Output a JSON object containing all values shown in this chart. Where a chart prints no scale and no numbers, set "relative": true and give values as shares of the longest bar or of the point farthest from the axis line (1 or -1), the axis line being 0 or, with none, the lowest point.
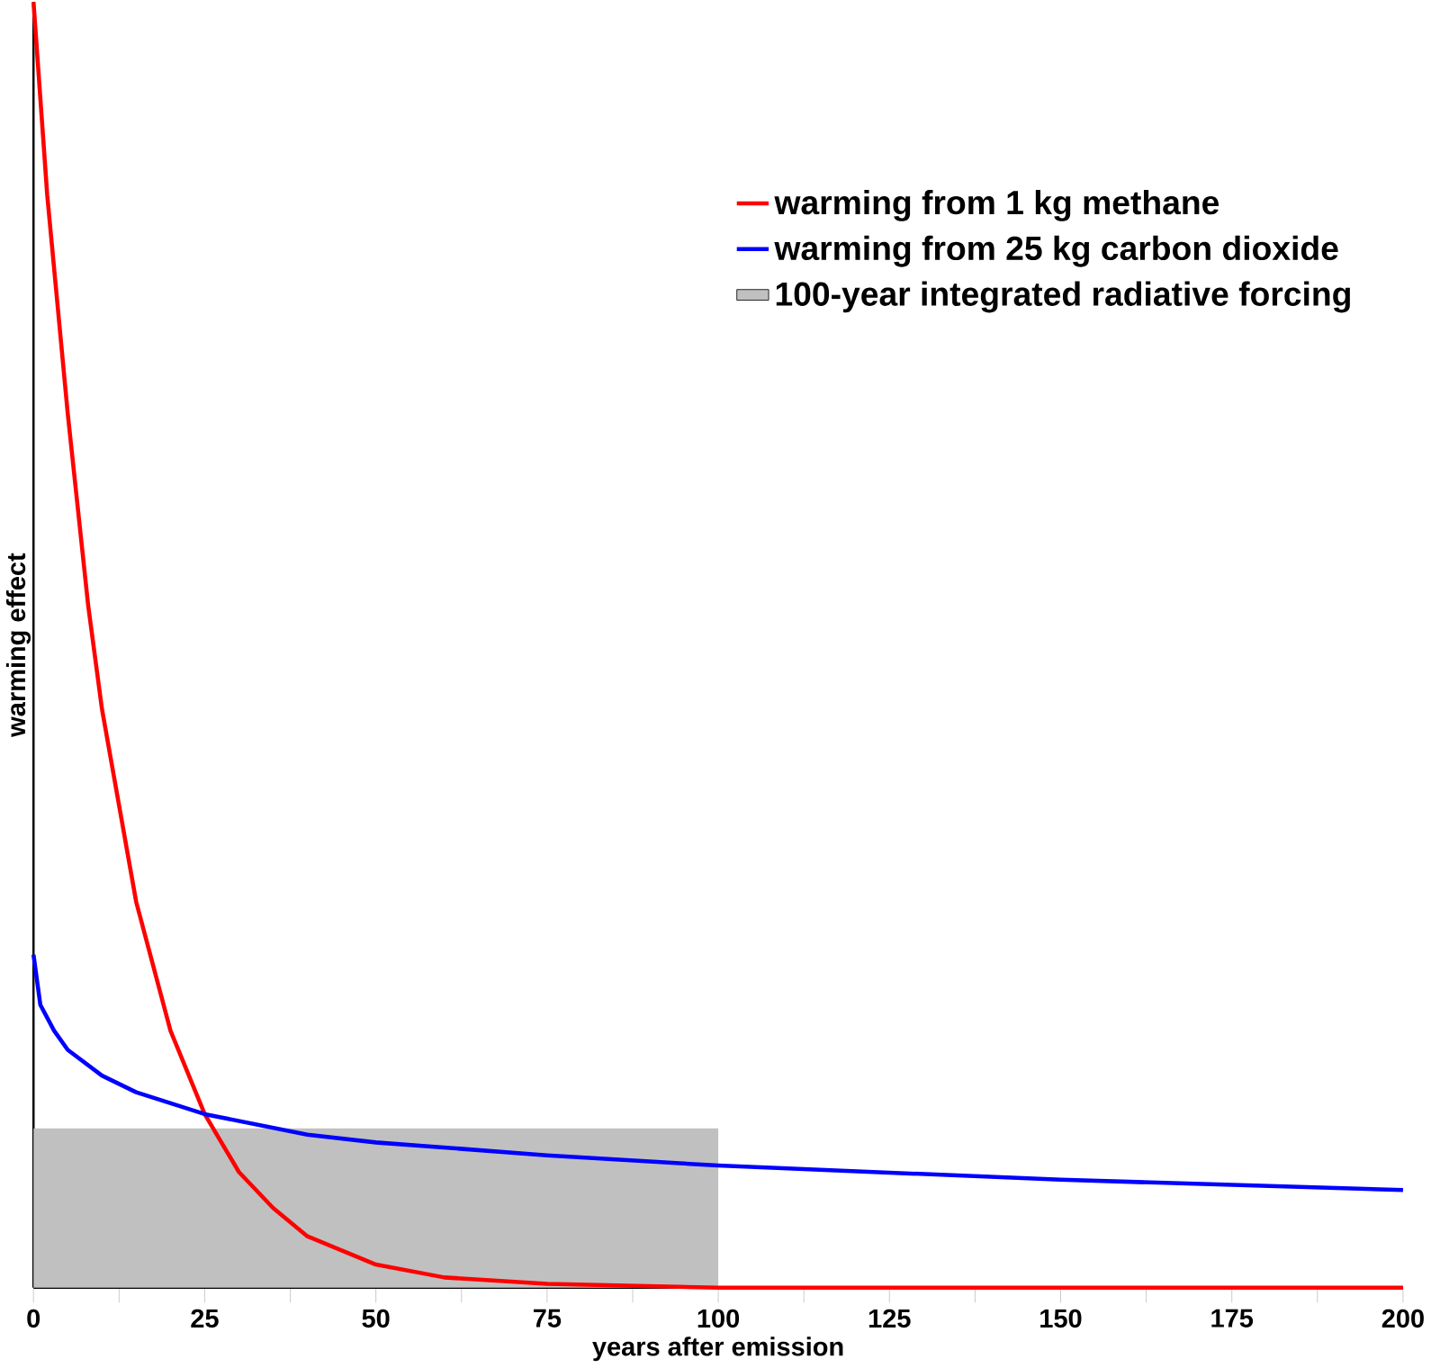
{
  "chart_data": {
    "type": "line",
    "relative": true,
    "xlabel": "years after emission",
    "ylabel": "warming effect",
    "xlim": [
      0,
      200
    ],
    "xticks": [
      0,
      25,
      50,
      75,
      100,
      125,
      150,
      175,
      200
    ],
    "legend": "top right",
    "marker": "none",
    "line_style": "solid",
    "series": [
      {
        "name": "warming from 1 kg  methane",
        "color": "#ff0000",
        "x": [
          0,
          2,
          5,
          8,
          10,
          15,
          20,
          25,
          30,
          35,
          40,
          50,
          60,
          75,
          100,
          125,
          150,
          200
        ],
        "values": [
          1,
          0.85,
          0.68,
          0.53,
          0.45,
          0.3,
          0.2,
          0.135,
          0.09,
          0.062,
          0.04,
          0.018,
          0.008,
          0.003,
          0,
          0,
          0,
          0
        ]
      },
      {
        "name": "warming from 25 kg  carbon dioxide",
        "color": "#0000ff",
        "x": [
          0,
          1,
          3,
          5,
          10,
          15,
          25,
          40,
          50,
          75,
          100,
          150,
          200
        ],
        "values": [
          0.259,
          0.22,
          0.2,
          0.185,
          0.165,
          0.152,
          0.135,
          0.119,
          0.113,
          0.103,
          0.095,
          0.084,
          0.076
        ]
      },
      {
        "name": "100-year integrated radiative forcing",
        "type": "area",
        "color": "#c0c0c0",
        "x": [
          0,
          100
        ],
        "values": [
          0.124,
          0.124
        ]
      }
    ]
  }
}
